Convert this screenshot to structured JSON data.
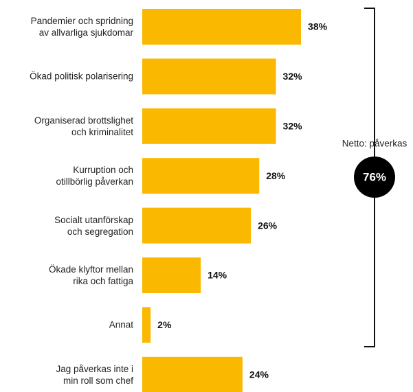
{
  "chart_data": {
    "type": "bar",
    "orientation": "horizontal",
    "categories": [
      "Pandemier och spridning\nav allvarliga sjukdomar",
      "Ökad politisk polarisering",
      "Organiserad brottslighet\noch kriminalitet",
      "Kurruption och\notillbörlig påverkan",
      "Socialt utanförskap\noch segregation",
      "Ökade klyftor mellan\nrika och fattiga",
      "Annat",
      "Jag påverkas inte i\nmin roll som chef"
    ],
    "values": [
      38,
      32,
      32,
      28,
      26,
      14,
      2,
      24
    ],
    "value_labels": [
      "38%",
      "32%",
      "32%",
      "28%",
      "26%",
      "14%",
      "2%",
      "24%"
    ],
    "color": "#fbb800",
    "annotation": {
      "text": "Netto: påverkas",
      "value": 76,
      "value_label": "76%"
    }
  }
}
